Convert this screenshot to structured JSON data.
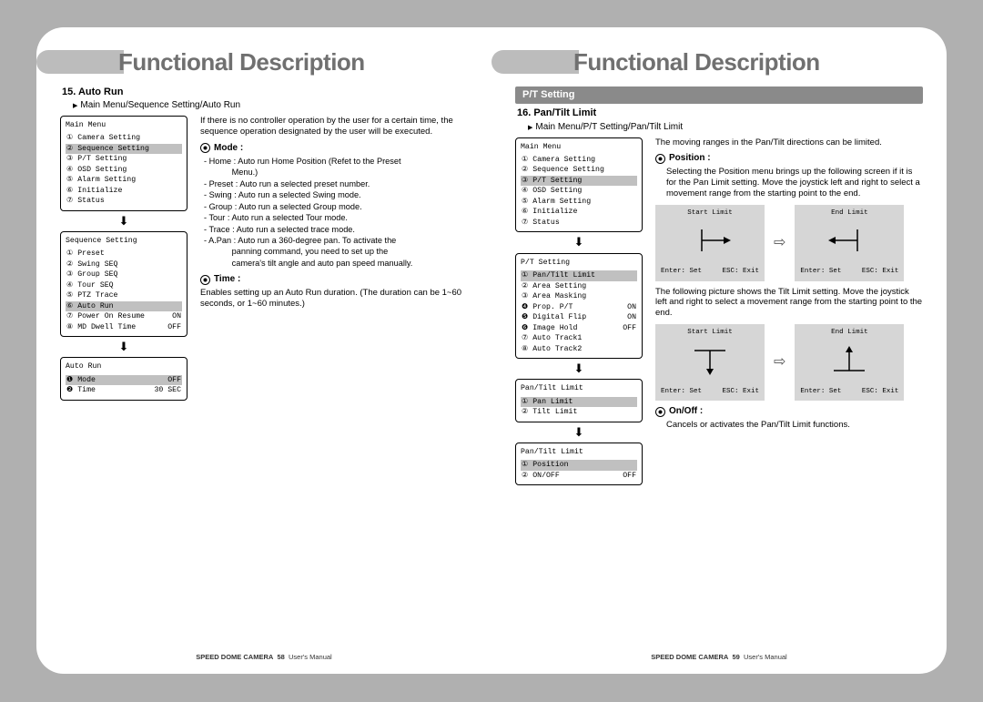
{
  "shared": {
    "page_title": "Functional Description",
    "product": "SPEED DOME CAMERA",
    "manual": "User's Manual"
  },
  "left": {
    "page_num": "58",
    "section_num": "15. Auto Run",
    "breadcrumb": "Main Menu/Sequence Setting/Auto Run",
    "menu1_title": "Main Menu",
    "menu1_items": [
      {
        "n": "①",
        "t": "Camera Setting"
      },
      {
        "n": "②",
        "t": "Sequence Setting",
        "hl": true
      },
      {
        "n": "③",
        "t": "P/T Setting"
      },
      {
        "n": "④",
        "t": "OSD Setting"
      },
      {
        "n": "⑤",
        "t": "Alarm Setting"
      },
      {
        "n": "⑥",
        "t": "Initialize"
      },
      {
        "n": "⑦",
        "t": "Status"
      }
    ],
    "menu2_title": "Sequence Setting",
    "menu2_items": [
      {
        "n": "①",
        "t": "Preset"
      },
      {
        "n": "②",
        "t": "Swing SEQ"
      },
      {
        "n": "③",
        "t": "Group SEQ"
      },
      {
        "n": "④",
        "t": "Tour SEQ"
      },
      {
        "n": "⑤",
        "t": "PTZ Trace"
      },
      {
        "n": "⑥",
        "t": "Auto Run",
        "hl": true
      },
      {
        "n": "⑦",
        "t": "Power On Resume",
        "v": "ON"
      },
      {
        "n": "⑧",
        "t": "MD Dwell Time",
        "v": "OFF"
      }
    ],
    "menu3_title": "Auto Run",
    "menu3_items": [
      {
        "n": "❶",
        "t": "Mode",
        "v": "OFF",
        "hl": true
      },
      {
        "n": "❷",
        "t": "Time",
        "v": "30 SEC"
      }
    ],
    "intro": "If there is no controller operation by the user for a certain time, the sequence operation designated by the user will be executed.",
    "mode_h": "Mode :",
    "mode_lines": [
      "- Home : Auto run Home Position (Refet to the Preset",
      "            Menu.)",
      "- Preset : Auto run a selected preset number.",
      "- Swing : Auto run a selected Swing mode.",
      "- Group : Auto run a selected Group mode.",
      "- Tour : Auto run a selected Tour mode.",
      "- Trace : Auto run a selected trace mode.",
      "- A.Pan : Auto run a 360-degree pan. To activate the",
      "            panning command, you need to set up the",
      "            camera's tilt angle and auto pan speed manually."
    ],
    "time_h": "Time :",
    "time_desc": "Enables setting up an Auto Run duration. (The duration can be 1~60 seconds, or 1~60 minutes.)"
  },
  "right": {
    "page_num": "59",
    "bar": "P/T Setting",
    "section_num": "16. Pan/Tilt Limit",
    "breadcrumb": "Main Menu/P/T Setting/Pan/Tilt Limit",
    "menu1_title": "Main Menu",
    "menu1_items": [
      {
        "n": "①",
        "t": "Camera Setting"
      },
      {
        "n": "②",
        "t": "Sequence Setting"
      },
      {
        "n": "③",
        "t": "P/T Setting",
        "hl": true
      },
      {
        "n": "④",
        "t": "OSD Setting"
      },
      {
        "n": "⑤",
        "t": "Alarm Setting"
      },
      {
        "n": "⑥",
        "t": "Initialize"
      },
      {
        "n": "⑦",
        "t": "Status"
      }
    ],
    "menu2_title": "P/T Setting",
    "menu2_items": [
      {
        "n": "①",
        "t": "Pan/Tilt Limit",
        "hl": true
      },
      {
        "n": "②",
        "t": "Area Setting"
      },
      {
        "n": "③",
        "t": "Area Masking"
      },
      {
        "n": "❹",
        "t": "Prop. P/T",
        "v": "ON"
      },
      {
        "n": "❺",
        "t": "Digital Flip",
        "v": "ON"
      },
      {
        "n": "❻",
        "t": "Image Hold",
        "v": "OFF"
      },
      {
        "n": "⑦",
        "t": "Auto Track1"
      },
      {
        "n": "⑧",
        "t": "Auto Track2"
      }
    ],
    "menu3_title": "Pan/Tilt Limit",
    "menu3_items": [
      {
        "n": "①",
        "t": "Pan Limit",
        "hl": true
      },
      {
        "n": "②",
        "t": "Tilt Limit"
      }
    ],
    "menu4_title": "Pan/Tilt Limit",
    "menu4_items": [
      {
        "n": "①",
        "t": "Position",
        "hl": true
      },
      {
        "n": "②",
        "t": "ON/OFF",
        "v": "OFF"
      }
    ],
    "intro": "The moving ranges in the Pan/Tilt directions can be limited.",
    "pos_h": "Position :",
    "pos_desc": "Selecting the Position menu brings up the following screen if it is for the Pan Limit setting. Move the joystick left and right to select a movement range from the starting point to the end.",
    "pan_start": "Start Limit",
    "pan_end": "End Limit",
    "enter": "Enter: Set",
    "esc": "ESC: Exit",
    "tilt_desc": "The following picture shows the Tilt Limit setting. Move the joystick left and right to select a movement range from the starting point to the end.",
    "onoff_h": "On/Off :",
    "onoff_desc": "Cancels or activates the Pan/Tilt Limit functions."
  }
}
